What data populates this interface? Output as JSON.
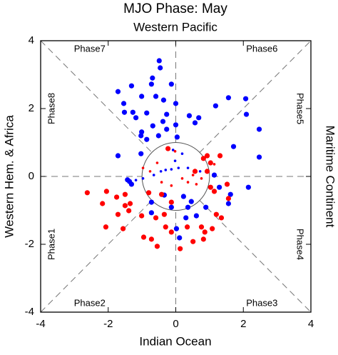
{
  "chart_data": {
    "type": "scatter",
    "title": "MJO Phase: May",
    "top_label": "Western Pacific",
    "xlabel": "Indian Ocean",
    "ylabel": "Western Hem. & Africa",
    "right_label": "Maritime Continent",
    "phase_labels": [
      "Phase1",
      "Phase2",
      "Phase3",
      "Phase4",
      "Phase5",
      "Phase6",
      "Phase7",
      "Phase8"
    ],
    "xlim": [
      -4,
      4
    ],
    "ylim": [
      -4,
      4
    ],
    "xticks": [
      -4,
      -2,
      0,
      2,
      4
    ],
    "yticks": [
      -4,
      -2,
      0,
      2,
      4
    ],
    "circle_radius": 1,
    "series": [
      {
        "color": "#0000ff",
        "size": "large",
        "x": [
          -0.49,
          -0.46,
          -0.69,
          -0.72,
          -1.71,
          -1.31,
          -0.13,
          -1.01,
          -0.59,
          -0.36,
          -1.54,
          -1.27,
          -1.18,
          -0.86,
          -0.27,
          -0.38,
          -0.68,
          -0.27,
          0.4,
          0.57,
          0.68,
          1.56,
          2.07,
          2.47,
          2.09,
          1.18,
          0,
          0,
          -1.03,
          -0.86,
          -0.51,
          0.04,
          -1.71,
          -1.03,
          2.47,
          1.71,
          -1.37,
          -1.31,
          -1.43,
          2.15,
          1.62,
          1.56,
          -0.72,
          -0.72,
          -0.34,
          -0.13,
          0.23,
          0.36,
          0.46,
          0.89,
          0.61,
          0.3,
          0.02,
          0.11,
          1.14,
          1.29,
          -1.52,
          -1.01
        ],
        "y": [
          3.41,
          3.2,
          2.9,
          2.72,
          2.5,
          2.67,
          2.72,
          2.36,
          2.36,
          2.25,
          2.15,
          1.89,
          1.73,
          1.87,
          1.83,
          1.62,
          1.49,
          1.39,
          1.79,
          1.58,
          1.73,
          2.32,
          2.29,
          1.39,
          1.83,
          2.08,
          2.15,
          1.52,
          1.2,
          1.09,
          1.2,
          1.16,
          0.61,
          0.67,
          0.57,
          0.88,
          -0.15,
          -0.23,
          -0.1,
          -0.32,
          -0.53,
          -0.8,
          -0.76,
          -1.07,
          -0.55,
          -0.91,
          -0.59,
          -0.91,
          -0.74,
          -0.91,
          -1.16,
          -1.22,
          -1.54,
          -1.81,
          0.04,
          -0.32,
          1.89,
          1.31
        ]
      },
      {
        "color": "#ff0000",
        "size": "large",
        "x": [
          -2.05,
          -2.62,
          -2.17,
          -1.75,
          -1.5,
          -1.35,
          -1.39,
          -1.71,
          -2.07,
          -1.56,
          -1.01,
          -0.59,
          -0.34,
          -0.95,
          -0.72,
          -0.55,
          0.13,
          -0.3,
          -0.13,
          0.34,
          0.76,
          0.86,
          1.08,
          0.82,
          0.51,
          1.2,
          1.35,
          1.56,
          1.52,
          1.31,
          0.93,
          0.82,
          1.03,
          0.93,
          0.57,
          1.14,
          -1.5,
          -0.42,
          -0.13,
          -0.8,
          -0.23,
          1.03
        ],
        "y": [
          -0.44,
          -0.48,
          -0.8,
          -0.61,
          -0.53,
          -0.8,
          -1.01,
          -1.12,
          -1.49,
          -1.54,
          -1.16,
          -1.22,
          -1.12,
          -1.79,
          -1.85,
          -2.06,
          -2.13,
          -1.49,
          -1.64,
          -1.49,
          -1.49,
          -1.64,
          -1.54,
          -1.85,
          -1.92,
          -1.12,
          -1.22,
          -0.65,
          -0.23,
          0.61,
          0.61,
          0.53,
          0.4,
          0.15,
          0.15,
          -0.44,
          -0.86,
          -0.53,
          -0.76,
          -0.48,
          0.82,
          -0.32
        ]
      },
      {
        "color": "#0000ff",
        "size": "small",
        "x": [
          -1.18,
          -0.97,
          -0.65,
          -0.44,
          -0.3,
          -0.13,
          0.08,
          0.36,
          0.72,
          0.19,
          -0.08,
          -0.02
        ],
        "y": [
          -0.11,
          -0.06,
          0.04,
          0.15,
          0.19,
          0.21,
          0.25,
          0.25,
          0.15,
          0.67,
          0.78,
          0.46
        ]
      },
      {
        "color": "#ff0000",
        "size": "small",
        "x": [
          -0.97,
          -0.76,
          -0.55,
          -0.42,
          0.19,
          0.36,
          0.61,
          0.76,
          0.51,
          1.14,
          -0.13,
          -0.02
        ],
        "y": [
          0.25,
          0.15,
          0.4,
          -0.17,
          -0.06,
          -0.17,
          -0.23,
          -0.06,
          0.04,
          0.36,
          -0.27,
          0.74
        ]
      }
    ]
  }
}
